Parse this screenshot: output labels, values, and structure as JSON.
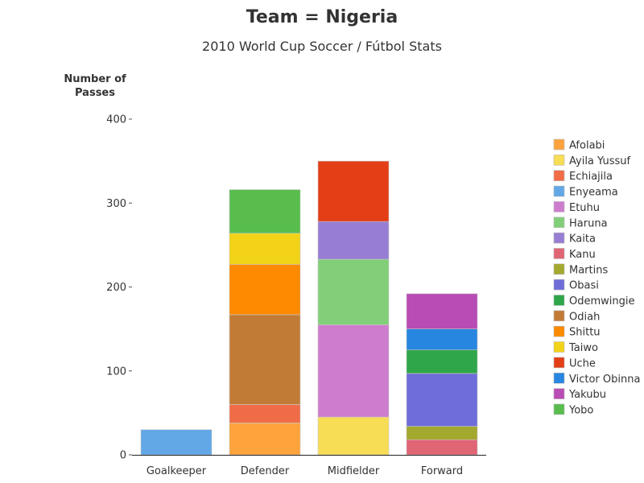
{
  "chart_data": {
    "type": "bar",
    "stacked": true,
    "title": "Team = Nigeria",
    "subtitle": "2010 World Cup Soccer / Fútbol Stats",
    "ylabel_lines": [
      "Number of",
      "Passes"
    ],
    "xlabel": "",
    "ylim": [
      0,
      400
    ],
    "yticks": [
      0,
      100,
      200,
      300,
      400
    ],
    "categories": [
      "Goalkeeper",
      "Defender",
      "Midfielder",
      "Forward"
    ],
    "legend_position": "right",
    "grid": false,
    "series": [
      {
        "name": "Afolabi",
        "color": "#FFA33C",
        "values": [
          0,
          38,
          0,
          0
        ]
      },
      {
        "name": "Ayila Yussuf",
        "color": "#F7DC55",
        "values": [
          0,
          0,
          45,
          0
        ]
      },
      {
        "name": "Echiajila",
        "color": "#F06C47",
        "values": [
          0,
          22,
          0,
          0
        ]
      },
      {
        "name": "Enyeama",
        "color": "#62A7E6",
        "values": [
          30,
          0,
          0,
          0
        ]
      },
      {
        "name": "Etuhu",
        "color": "#CE7DCE",
        "values": [
          0,
          0,
          110,
          0
        ]
      },
      {
        "name": "Haruna",
        "color": "#82CF79",
        "values": [
          0,
          0,
          78,
          0
        ]
      },
      {
        "name": "Kaita",
        "color": "#977DD3",
        "values": [
          0,
          0,
          45,
          0
        ]
      },
      {
        "name": "Kanu",
        "color": "#E06575",
        "values": [
          0,
          0,
          0,
          18
        ]
      },
      {
        "name": "Martins",
        "color": "#A3A82F",
        "values": [
          0,
          0,
          0,
          16
        ]
      },
      {
        "name": "Obasi",
        "color": "#6E6DD9",
        "values": [
          0,
          0,
          0,
          63
        ]
      },
      {
        "name": "Odemwingie",
        "color": "#2FA64A",
        "values": [
          0,
          0,
          0,
          28
        ]
      },
      {
        "name": "Odiah",
        "color": "#C27B36",
        "values": [
          0,
          107,
          0,
          0
        ]
      },
      {
        "name": "Shittu",
        "color": "#FD8A00",
        "values": [
          0,
          60,
          0,
          0
        ]
      },
      {
        "name": "Taiwo",
        "color": "#F2D318",
        "values": [
          0,
          37,
          0,
          0
        ]
      },
      {
        "name": "Uche",
        "color": "#E33E16",
        "values": [
          0,
          0,
          72,
          0
        ]
      },
      {
        "name": "Victor Obinna",
        "color": "#2786E0",
        "values": [
          0,
          0,
          0,
          25
        ]
      },
      {
        "name": "Yakubu",
        "color": "#B94CB5",
        "values": [
          0,
          0,
          0,
          42
        ]
      },
      {
        "name": "Yobo",
        "color": "#58BD4D",
        "values": [
          0,
          52,
          0,
          0
        ]
      }
    ]
  }
}
